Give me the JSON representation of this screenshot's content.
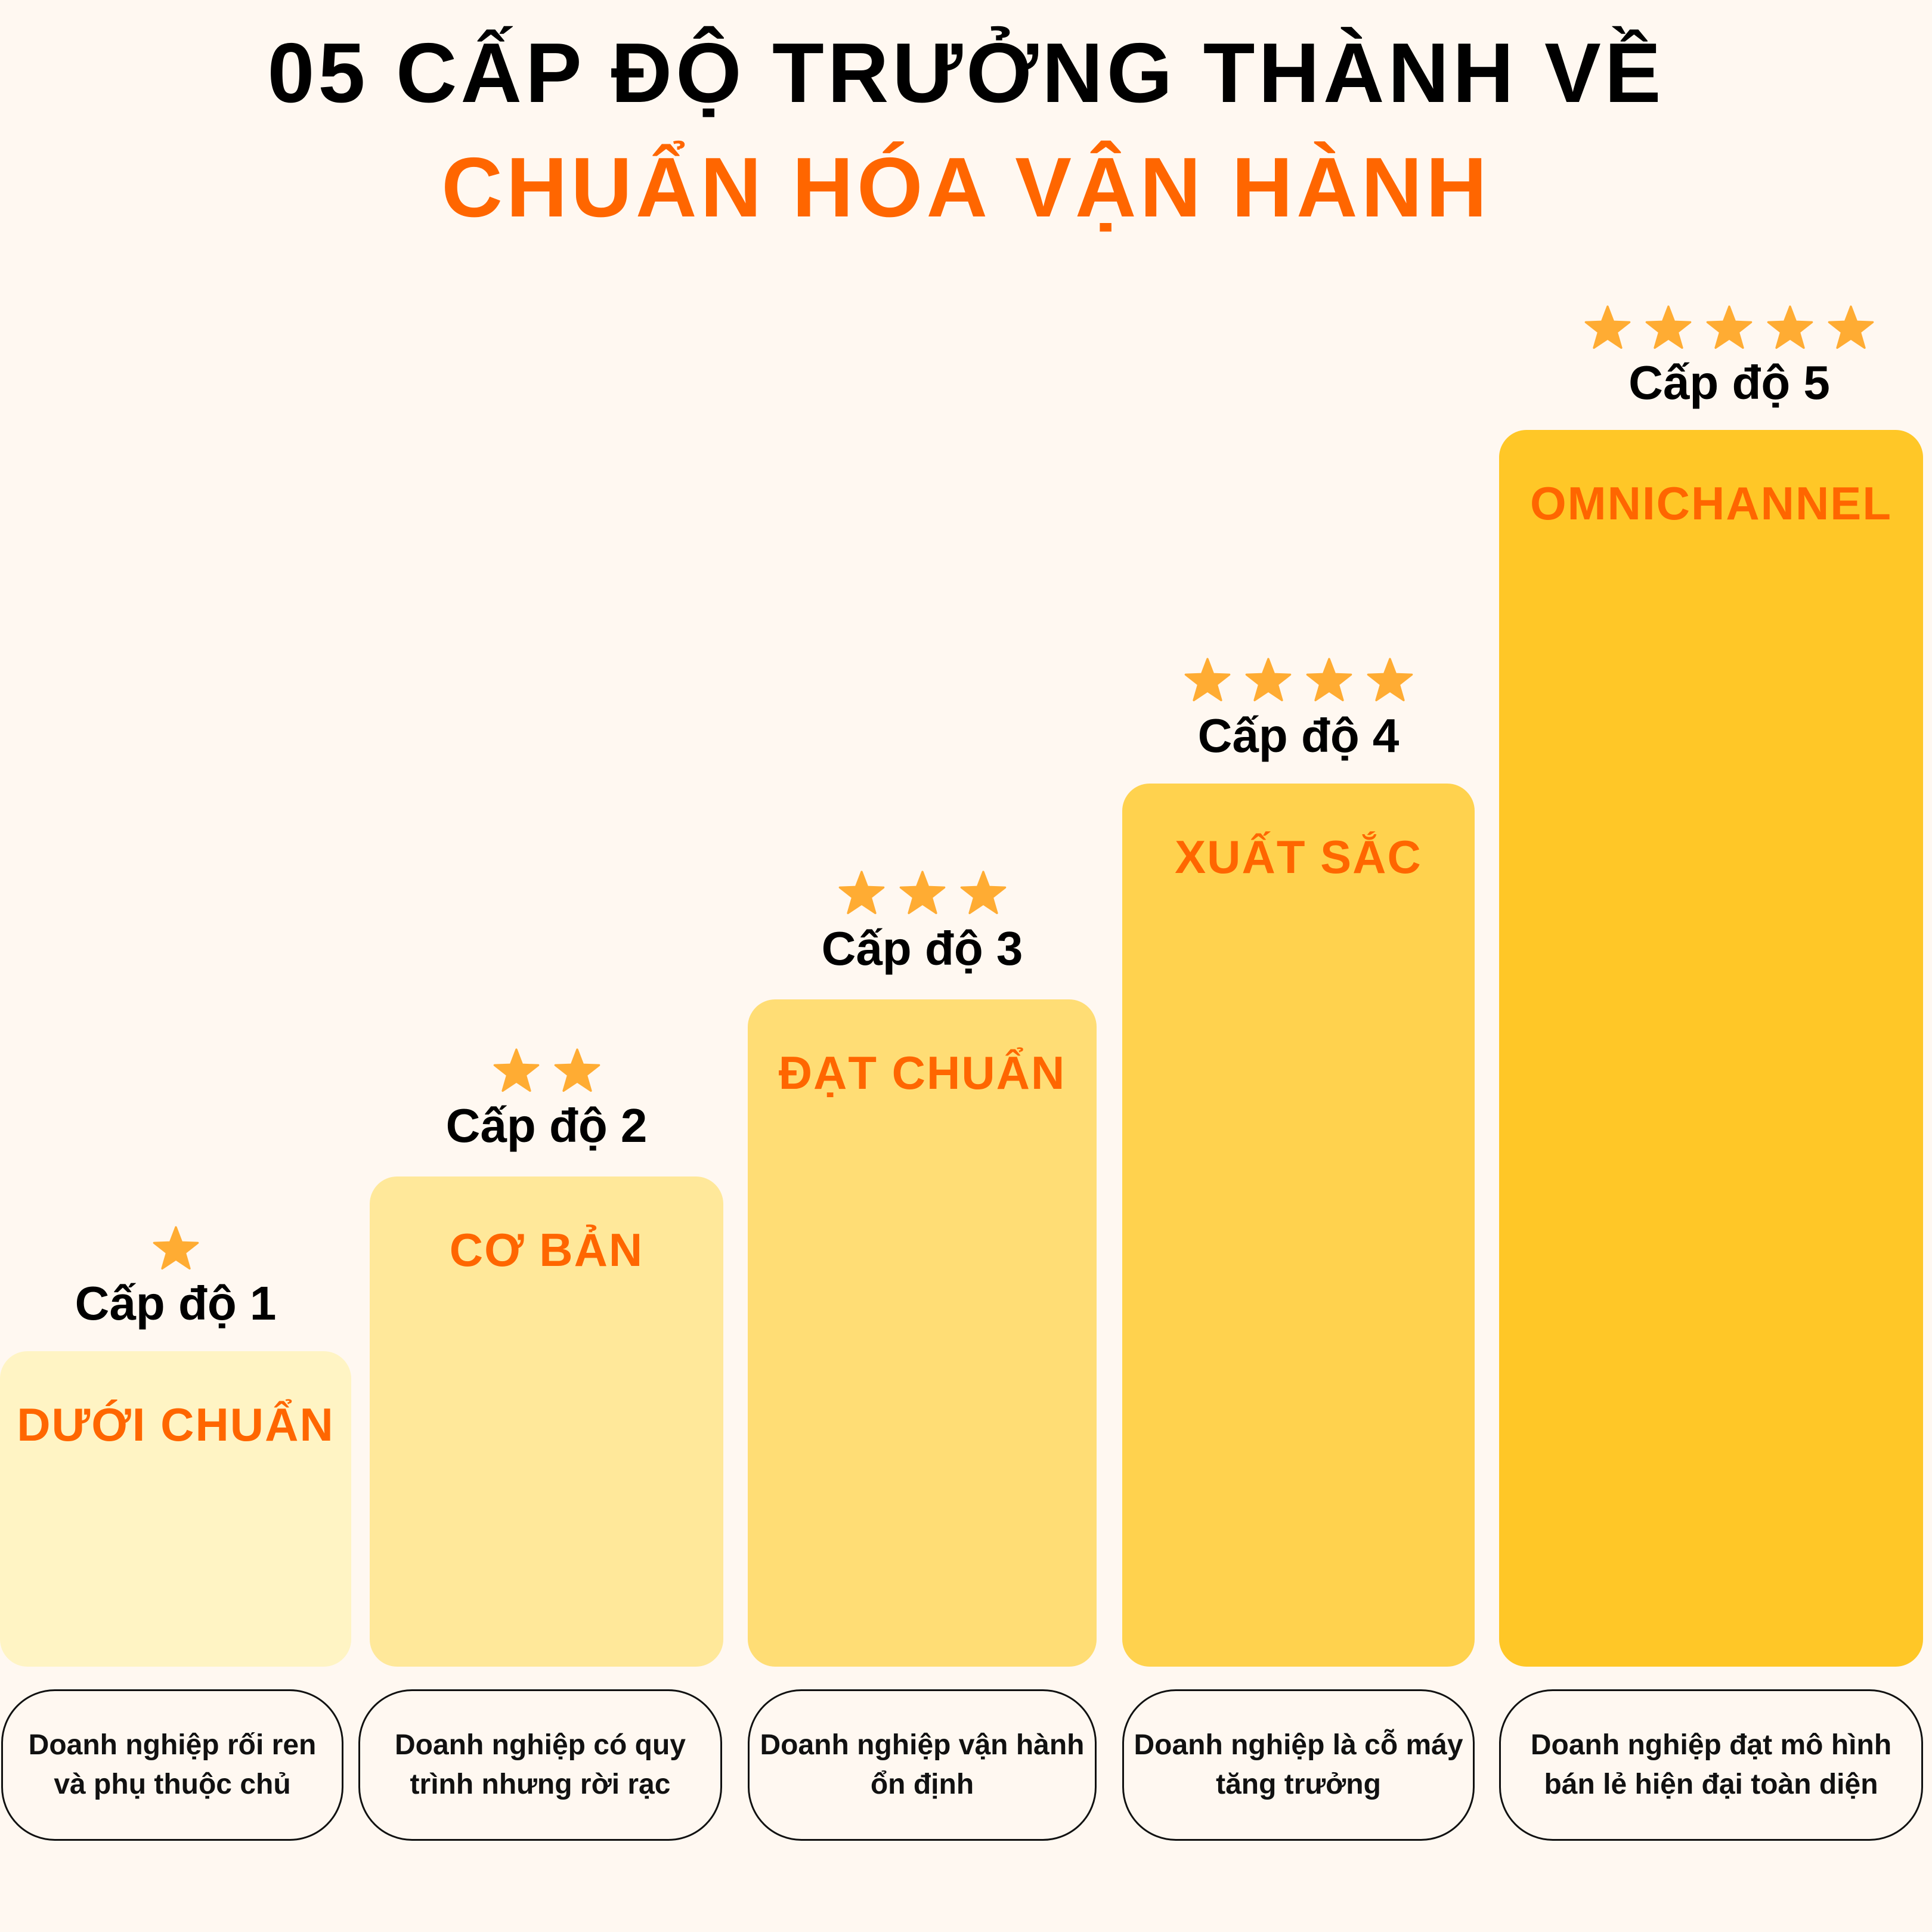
{
  "header": {
    "title_line1": "05 CẤP ĐỘ TRƯỞNG THÀNH VỀ",
    "title_line2": "CHUẨN HÓA VẬN HÀNH",
    "title_color": "#000000",
    "accent_color": "#FF6600"
  },
  "star_color": "#FFAC33",
  "star_icon": "star-icon",
  "levels": [
    {
      "label": "Cấp độ 1",
      "stars": 1,
      "name": "DƯỚI CHUẨN",
      "description": "Doanh nghiệp rối ren và phụ thuộc chủ",
      "color": "#FFF4C4"
    },
    {
      "label": "Cấp độ 2",
      "stars": 2,
      "name": "CƠ BẢN",
      "description": "Doanh nghiệp có quy trình nhưng rời rạc",
      "color": "#FFE89A"
    },
    {
      "label": "Cấp độ 3",
      "stars": 3,
      "name": "ĐẠT CHUẨN",
      "description": "Doanh nghiệp vận hành ổn định",
      "color": "#FFDD75"
    },
    {
      "label": "Cấp độ 4",
      "stars": 4,
      "name": "XUẤT SẮC",
      "description": "Doanh nghiệp là cỗ máy tăng trưởng",
      "color": "#FFD24E"
    },
    {
      "label": "Cấp độ 5",
      "stars": 5,
      "name": "OMNICHANNEL",
      "description": "Doanh nghiệp đạt mô hình bán lẻ hiện đại toàn diện",
      "color": "#FFC727"
    }
  ]
}
